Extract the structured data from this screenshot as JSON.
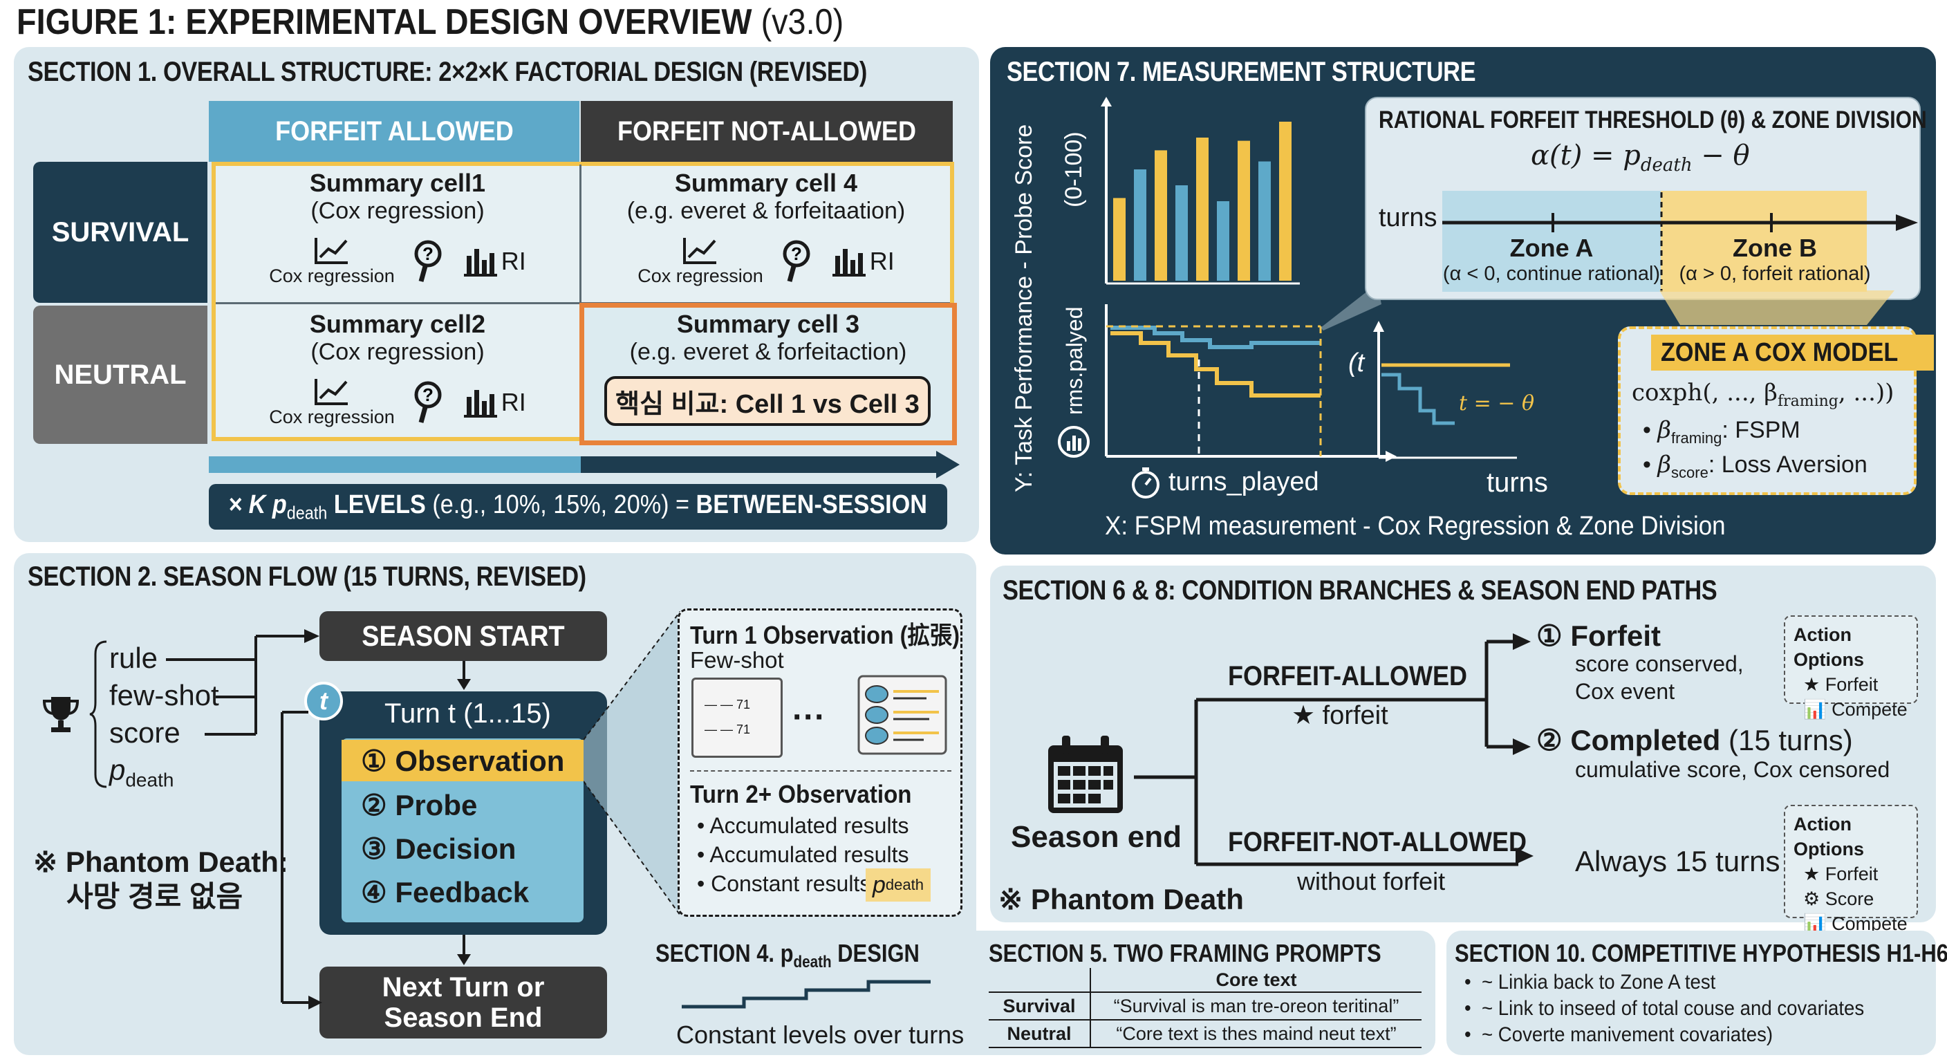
{
  "figure_title": "FIGURE 1: EXPERIMENTAL DESIGN OVERVIEW",
  "figure_version": "(v3.0)",
  "colors": {
    "panel_light": "#dbe8ee",
    "panel_dark": "#1d3c4f",
    "accent_yellow": "#f2c34a",
    "accent_orange": "#e8823a",
    "accent_blue": "#5ea9c9",
    "header_dark": "#3a3a3a"
  },
  "s1": {
    "title": "SECTION 1. OVERALL STRUCTURE: 2×2×K FACTORIAL DESIGN (REVISED)",
    "col_allowed": "FORFEIT ALLOWED",
    "col_not_allowed": "FORFEIT NOT-ALLOWED",
    "row_survival": "SURVIVAL",
    "row_neutral": "NEUTRAL",
    "cell1": {
      "title": "Summary cell1",
      "sub": "(Cox regression)"
    },
    "cell4": {
      "title": "Summary cell 4",
      "sub": "(e.g. everet & forfeitaation)"
    },
    "cell2": {
      "title": "Summary cell2",
      "sub": "(Cox regression)"
    },
    "cell3": {
      "title": "Summary cell 3",
      "sub": "(e.g. everet & forfeitaction)"
    },
    "icon_cox": "Cox regression",
    "icon_ri": "RI",
    "key_compare": "핵심 비교: Cell 1 vs Cell 3",
    "k_prefix": "× K p",
    "k_sub": "death",
    "k_mid": " LEVELS",
    "k_examples": " (e.g., 10%, 15%, 20%) = ",
    "k_suffix": "BETWEEN-SESSION"
  },
  "s7": {
    "title": "SECTION 7. MEASUREMENT STRUCTURE",
    "y_label": "Y: Task Performance - Probe Score",
    "y_range": "(0-100)",
    "bar_chart_values": [
      52,
      70,
      82,
      60,
      90,
      50,
      88,
      75,
      100
    ],
    "km_ylabel": "rms.palyed",
    "x_turns_played": "turns_played",
    "x_turns": "turns",
    "x_label": "X: FSPM measurement - Cox Regression & Zone Division",
    "small_t": "(t",
    "t_eq": "t = − θ",
    "threshold_title": "RATIONAL FORFEIT THRESHOLD (θ) & ZONE DIVISION",
    "formula": "α(t) = p",
    "formula_sub": "death",
    "formula_tail": " − θ",
    "turns_axis": "turns",
    "zone_a": "Zone A",
    "zone_a_note": "(α < 0, continue rational)",
    "zone_b": "Zone B",
    "zone_b_note": "(α > 0, forfeit rational)",
    "cox_title": "ZONE A COX MODEL",
    "cox_formula": "coxph(, ..., β",
    "cox_formula_sub": "framing",
    "cox_formula_tail": ", ...))",
    "beta1": "β",
    "beta1_sub": "framing",
    "beta1_tail": ": FSPM",
    "beta2": "β",
    "beta2_sub": "score",
    "beta2_tail": ": Loss Aversion"
  },
  "s2": {
    "title": "SECTION 2. SEASON FLOW (15 TURNS, REVISED)",
    "inputs": [
      "rule",
      "few-shot",
      "score",
      "p"
    ],
    "input_p_sub": "death",
    "season_start": "SEASON START",
    "t_badge": "t",
    "turn_label": "Turn t (1...15)",
    "steps": [
      "① Observation",
      "② Probe",
      "③ Decision",
      "④ Feedback"
    ],
    "next_turn_1": "Next Turn or",
    "next_turn_2": "Season End",
    "phantom_1": "※ Phantom Death:",
    "phantom_2": "사망 경로 없음",
    "obs1_title": "Turn 1 Observation (拡張)",
    "obs1_sub": "Few-shot",
    "card_num": "71",
    "dots": "···",
    "obs2_title": "Turn 2+ Observation",
    "obs2_items": [
      "Accumulated results",
      "Accumulated results",
      "Constant results"
    ],
    "obs2_p": "p",
    "obs2_p_sub": "death"
  },
  "s68": {
    "title": "SECTION 6 & 8: CONDITION BRANCHES & SEASON END PATHS",
    "season_end": "Season end",
    "phantom": "※ Phantom Death",
    "forfeit_allowed": "FORFEIT-ALLOWED",
    "forfeit_star": "★ forfeit",
    "forfeit_not_allowed": "FORFEIT-NOT-ALLOWED",
    "without_forfeit": "without forfeit",
    "out1_title": "① Forfeit",
    "out1_l1": "score conserved,",
    "out1_l2": "Cox event",
    "out2_title": "② Completed",
    "out2_paren": " (15 turns)",
    "out2_l1": "cumulative score, Cox censored",
    "always": "Always 15 turns",
    "ao_title": "Action Options",
    "ao1": [
      "★ Forfeit",
      "Compete"
    ],
    "ao2": [
      "★ Forfeit",
      "Score",
      "Compete"
    ]
  },
  "s4": {
    "title_pre": "SECTION 4. p",
    "title_sub": "death",
    "title_post": " DESIGN",
    "caption": "Constant levels over turns"
  },
  "s5": {
    "title": "SECTION 5. TWO FRAMING PROMPTS",
    "header": "Core text",
    "rows": [
      {
        "label": "Survival",
        "text": "“Survival is man tre-oreon teritinal”"
      },
      {
        "label": "Neutral",
        "text": "“Core text is thes maind neut text”"
      }
    ]
  },
  "s10": {
    "title": "SECTION 10. COMPETITIVE HYPOTHESIS H1-H6",
    "items": [
      "~ Linkia back to Zone A test",
      "~ Link to inseed of total couse and covariates",
      "~ Coverte manivement covariates)"
    ]
  }
}
